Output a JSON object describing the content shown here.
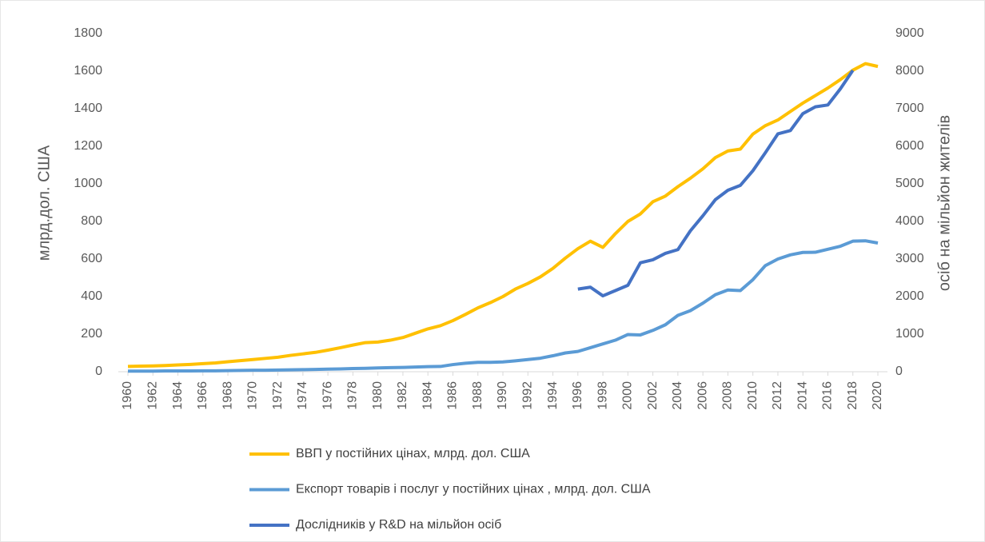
{
  "chart_data": {
    "type": "line",
    "x": [
      1960,
      1961,
      1962,
      1963,
      1964,
      1965,
      1966,
      1967,
      1968,
      1969,
      1970,
      1971,
      1972,
      1973,
      1974,
      1975,
      1976,
      1977,
      1978,
      1979,
      1980,
      1981,
      1982,
      1983,
      1984,
      1985,
      1986,
      1987,
      1988,
      1989,
      1990,
      1991,
      1992,
      1993,
      1994,
      1995,
      1996,
      1997,
      1998,
      1999,
      2000,
      2001,
      2002,
      2003,
      2004,
      2005,
      2006,
      2007,
      2008,
      2009,
      2010,
      2011,
      2012,
      2013,
      2014,
      2015,
      2016,
      2017,
      2018,
      2019,
      2020
    ],
    "xlim": [
      1960,
      2020
    ],
    "xticks": [
      1960,
      1962,
      1964,
      1966,
      1968,
      1970,
      1972,
      1974,
      1976,
      1978,
      1980,
      1982,
      1984,
      1986,
      1988,
      1990,
      1992,
      1994,
      1996,
      1998,
      2000,
      2002,
      2004,
      2006,
      2008,
      2010,
      2012,
      2014,
      2016,
      2018,
      2020
    ],
    "ylabel": "млрд.дол. США",
    "y2label": "осіб на мільйон жителів",
    "ylim": [
      0,
      1800
    ],
    "yticks": [
      0,
      200,
      400,
      600,
      800,
      1000,
      1200,
      1400,
      1600,
      1800
    ],
    "y2lim": [
      0,
      9000
    ],
    "y2ticks": [
      0,
      1000,
      2000,
      3000,
      4000,
      5000,
      6000,
      7000,
      8000,
      9000
    ],
    "legend": "bottom",
    "series": [
      {
        "name": "ВВП у постійних цінах, млрд. дол. США",
        "color": "#ffc000",
        "values": [
          28,
          30,
          31,
          33,
          36,
          39,
          43,
          47,
          53,
          59,
          65,
          71,
          77,
          87,
          95,
          103,
          115,
          128,
          142,
          155,
          158,
          168,
          182,
          205,
          228,
          245,
          272,
          305,
          340,
          368,
          400,
          440,
          470,
          505,
          550,
          605,
          655,
          695,
          662,
          735,
          800,
          840,
          905,
          935,
          985,
          1030,
          1080,
          1140,
          1175,
          1185,
          1265,
          1310,
          1340,
          1385,
          1430,
          1470,
          1510,
          1555,
          1605,
          1640,
          1625
        ]
      },
      {
        "name": "Експорт товарів і послуг у постійних цінах , млрд. дол. США",
        "color": "#5b9bd5",
        "values": [
          3,
          3,
          3,
          4,
          4,
          4,
          5,
          5,
          6,
          7,
          8,
          8,
          9,
          10,
          11,
          12,
          14,
          15,
          17,
          18,
          20,
          22,
          23,
          25,
          27,
          28,
          38,
          45,
          50,
          50,
          52,
          58,
          65,
          72,
          85,
          100,
          108,
          128,
          148,
          168,
          198,
          196,
          220,
          250,
          300,
          325,
          365,
          410,
          435,
          432,
          490,
          565,
          600,
          622,
          635,
          636,
          652,
          668,
          695,
          697,
          685
        ]
      },
      {
        "name": "Дослідників у R&D  на мільйон осіб",
        "color": "#4472c4",
        "axis": "y2",
        "values": [
          null,
          null,
          null,
          null,
          null,
          null,
          null,
          null,
          null,
          null,
          null,
          null,
          null,
          null,
          null,
          null,
          null,
          null,
          null,
          null,
          null,
          null,
          null,
          null,
          null,
          null,
          null,
          null,
          null,
          null,
          null,
          null,
          null,
          null,
          null,
          null,
          2200,
          2250,
          2020,
          2160,
          2300,
          2900,
          2980,
          3150,
          3250,
          3750,
          4150,
          4580,
          4830,
          4960,
          5350,
          5830,
          6330,
          6420,
          6870,
          7050,
          7100,
          7530,
          8020,
          null,
          null
        ]
      }
    ]
  }
}
